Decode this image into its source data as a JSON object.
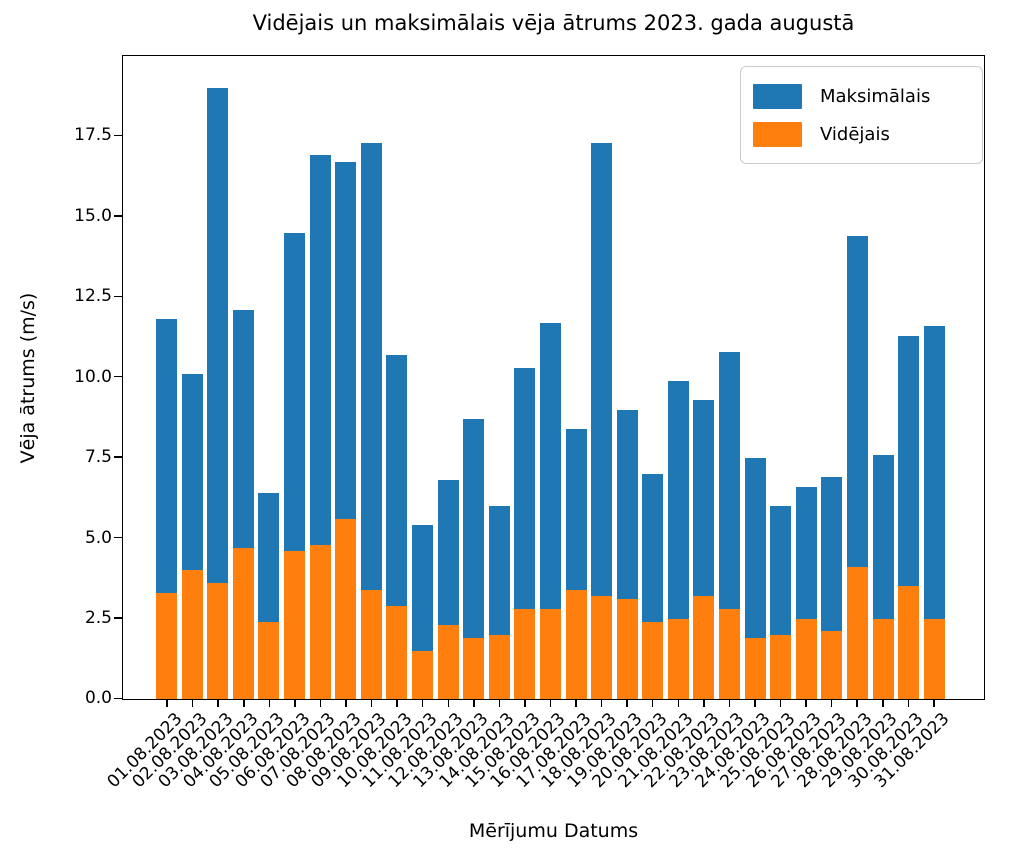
{
  "title": "Vidējais un maksimālais vēja ātrums 2023. gada augustā",
  "y_axis": {
    "label": "Vēja ātrums (m/s)",
    "tick_labels": [
      "0.0",
      "2.5",
      "5.0",
      "7.5",
      "10.0",
      "12.5",
      "15.0",
      "17.5"
    ],
    "tick_values": [
      0,
      2.5,
      5,
      7.5,
      10,
      12.5,
      15,
      17.5
    ]
  },
  "x_axis": {
    "label": "Mērījumu Datums"
  },
  "legend": [
    {
      "label": "Maksimālais",
      "color": "#1f77b4"
    },
    {
      "label": "Vidējais",
      "color": "#ff7f0e"
    }
  ],
  "chart_data": {
    "type": "bar",
    "bar_style": "overlapped",
    "title": "Vidējais un maksimālais vēja ātrums 2023. gada augustā",
    "xlabel": "Mērījumu Datums",
    "ylabel": "Vēja ātrums (m/s)",
    "ylim": [
      0,
      19.95
    ],
    "yticks": [
      0,
      2.5,
      5,
      7.5,
      10,
      12.5,
      15,
      17.5
    ],
    "grid": false,
    "legend_position": "upper right",
    "categories": [
      "01.08.2023",
      "02.08.2023",
      "03.08.2023",
      "04.08.2023",
      "05.08.2023",
      "06.08.2023",
      "07.08.2023",
      "08.08.2023",
      "09.08.2023",
      "10.08.2023",
      "11.08.2023",
      "12.08.2023",
      "13.08.2023",
      "14.08.2023",
      "15.08.2023",
      "16.08.2023",
      "17.08.2023",
      "18.08.2023",
      "19.08.2023",
      "20.08.2023",
      "21.08.2023",
      "22.08.2023",
      "23.08.2023",
      "24.08.2023",
      "25.08.2023",
      "26.08.2023",
      "27.08.2023",
      "28.08.2023",
      "29.08.2023",
      "30.08.2023",
      "31.08.2023"
    ],
    "series": [
      {
        "name": "Maksimālais",
        "color": "#1f77b4",
        "values": [
          11.8,
          10.1,
          19.0,
          12.1,
          6.4,
          14.5,
          16.9,
          16.7,
          17.3,
          10.7,
          5.4,
          6.8,
          8.7,
          6.0,
          10.3,
          11.7,
          8.4,
          17.3,
          9.0,
          7.0,
          9.9,
          9.3,
          10.8,
          7.5,
          6.0,
          6.6,
          6.9,
          14.4,
          7.6,
          11.3,
          11.6
        ]
      },
      {
        "name": "Vidējais",
        "color": "#ff7f0e",
        "values": [
          3.3,
          4.0,
          3.6,
          4.7,
          2.4,
          4.6,
          4.8,
          5.6,
          3.4,
          2.9,
          1.5,
          2.3,
          1.9,
          2.0,
          2.8,
          2.8,
          3.4,
          3.2,
          3.1,
          2.4,
          2.5,
          3.2,
          2.8,
          1.9,
          2.0,
          2.5,
          2.1,
          4.1,
          2.5,
          3.5,
          2.5
        ]
      }
    ]
  }
}
